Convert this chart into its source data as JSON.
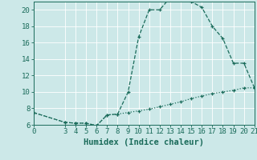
{
  "xlabel": "Humidex (Indice chaleur)",
  "background_color": "#cce8e8",
  "line_color": "#1a6b5a",
  "xlim": [
    0,
    21
  ],
  "ylim": [
    6,
    21
  ],
  "yticks": [
    6,
    8,
    10,
    12,
    14,
    16,
    18,
    20
  ],
  "xticks": [
    0,
    3,
    4,
    5,
    6,
    7,
    8,
    9,
    10,
    11,
    12,
    13,
    14,
    15,
    16,
    17,
    18,
    19,
    20,
    21
  ],
  "curve1_x": [
    0,
    3,
    4,
    5,
    6,
    7,
    8,
    9,
    10,
    11,
    12,
    13,
    14,
    15,
    16,
    17,
    18,
    19,
    20,
    21
  ],
  "curve1_y": [
    7.5,
    6.3,
    6.2,
    6.2,
    5.9,
    7.2,
    7.3,
    10.0,
    16.7,
    20.0,
    20.0,
    21.5,
    21.5,
    21.0,
    20.3,
    18.0,
    16.5,
    13.5,
    13.5,
    10.5
  ],
  "curve2_x": [
    0,
    3,
    4,
    5,
    6,
    7,
    8,
    9,
    10,
    11,
    12,
    13,
    14,
    15,
    16,
    17,
    18,
    19,
    20,
    21
  ],
  "curve2_y": [
    7.5,
    6.3,
    6.2,
    6.2,
    5.9,
    7.2,
    7.3,
    7.5,
    7.7,
    7.9,
    8.2,
    8.5,
    8.8,
    9.2,
    9.5,
    9.8,
    10.0,
    10.2,
    10.5,
    10.5
  ],
  "grid_color": "#ffffff",
  "grid_linewidth": 0.6,
  "tick_fontsize": 6.5,
  "label_fontsize": 7.5
}
